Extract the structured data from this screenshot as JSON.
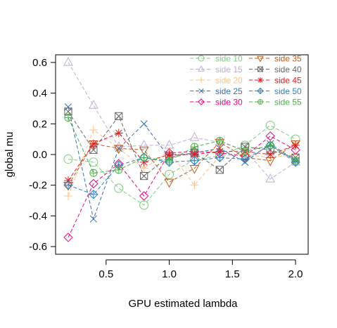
{
  "chart_data": {
    "type": "line",
    "xlabel": "GPU estimated lambda",
    "ylabel": "global mu",
    "xlim": [
      0.1,
      2.1
    ],
    "ylim": [
      -0.65,
      0.65
    ],
    "x_ticks": [
      0.5,
      1.0,
      1.5,
      2.0
    ],
    "x_tick_labels": [
      "0.5",
      "1.0",
      "1.5",
      "2.0"
    ],
    "y_ticks": [
      -0.6,
      -0.4,
      -0.2,
      0.0,
      0.2,
      0.4,
      0.6
    ],
    "y_tick_labels": [
      "-0.6",
      "-0.4",
      "-0.2",
      "0.0",
      "0.2",
      "0.4",
      "0.6"
    ],
    "grid": false,
    "legend_position": "top-right",
    "x": [
      0.2,
      0.4,
      0.6,
      0.8,
      1.0,
      1.2,
      1.4,
      1.6,
      1.8,
      2.0
    ],
    "series": [
      {
        "name": "side 10",
        "color": "#7fc97f",
        "marker": "circle",
        "values": [
          -0.03,
          -0.05,
          -0.22,
          -0.33,
          -0.13,
          -0.03,
          -0.01,
          0.06,
          0.19,
          0.1
        ]
      },
      {
        "name": "side 15",
        "color": "#beaed4",
        "marker": "triangle",
        "values": [
          0.6,
          0.32,
          0.05,
          0.06,
          0.06,
          0.11,
          0.08,
          0.03,
          -0.16,
          -0.05
        ]
      },
      {
        "name": "side 20",
        "color": "#fdc086",
        "marker": "plus",
        "values": [
          -0.27,
          0.16,
          0.04,
          -0.09,
          0.02,
          -0.2,
          -0.01,
          0.0,
          -0.02,
          0.0
        ]
      },
      {
        "name": "side 25",
        "color": "#386cb0",
        "marker": "x",
        "values": [
          0.31,
          -0.42,
          0.04,
          0.2,
          -0.02,
          0.01,
          0.04,
          -0.05,
          0.07,
          -0.04
        ]
      },
      {
        "name": "side 30",
        "color": "#f0027f",
        "marker": "diamond",
        "values": [
          -0.54,
          -0.19,
          -0.06,
          -0.27,
          0.01,
          0.02,
          0.01,
          -0.01,
          0.12,
          0.03
        ]
      },
      {
        "name": "side 35",
        "color": "#bf5b17",
        "marker": "triangle-down",
        "values": [
          -0.2,
          0.07,
          0.04,
          0.03,
          -0.18,
          -0.09,
          0.08,
          -0.02,
          -0.04,
          0.07
        ]
      },
      {
        "name": "side 40",
        "color": "#666666",
        "marker": "square-x",
        "values": [
          0.28,
          0.03,
          0.25,
          -0.14,
          -0.01,
          0.01,
          -0.1,
          0.05,
          0.03,
          -0.02
        ]
      },
      {
        "name": "side 45",
        "color": "#e41a1c",
        "marker": "star",
        "values": [
          -0.17,
          0.07,
          0.14,
          -0.05,
          0.0,
          0.0,
          0.02,
          0.02,
          0.0,
          0.06
        ]
      },
      {
        "name": "side 50",
        "color": "#377eb8",
        "marker": "diamond-plus",
        "values": [
          -0.2,
          -0.26,
          -0.07,
          -0.02,
          -0.05,
          -0.04,
          -0.02,
          -0.03,
          0.06,
          -0.05
        ]
      },
      {
        "name": "side 55",
        "color": "#4daf4a",
        "marker": "circle-plus",
        "values": [
          0.24,
          -0.12,
          -0.1,
          -0.02,
          -0.04,
          0.05,
          0.09,
          0.02,
          0.06,
          -0.04
        ]
      }
    ]
  }
}
